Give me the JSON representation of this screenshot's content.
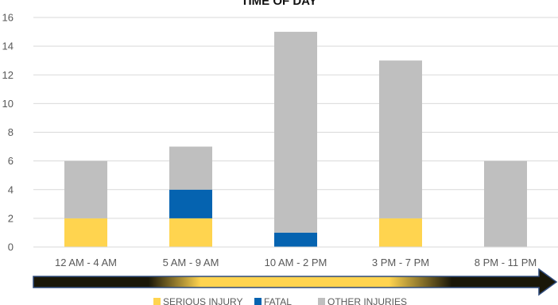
{
  "chart_data": {
    "type": "bar",
    "stacked": true,
    "title": "TIME OF DAY",
    "xlabel": "",
    "ylabel": "",
    "categories": [
      "12 AM - 4 AM",
      "5 AM - 9 AM",
      "10 AM - 2 PM",
      "3 PM - 7 PM",
      "8 PM - 11 PM"
    ],
    "series": [
      {
        "name": "SERIOUS INJURY",
        "color": "#FFD44F",
        "values": [
          2,
          2,
          0,
          2,
          0
        ]
      },
      {
        "name": "FATAL",
        "color": "#0563B0",
        "values": [
          0,
          2,
          1,
          0,
          0
        ]
      },
      {
        "name": "OTHER INJURIES",
        "color": "#BFBFBF",
        "values": [
          4,
          3,
          14,
          11,
          6
        ]
      }
    ],
    "ylim": [
      0,
      16
    ],
    "yticks": [
      0,
      2,
      4,
      6,
      8,
      10,
      12,
      14,
      16
    ],
    "grid": true,
    "legend": "bottom",
    "time_arrow": {
      "colors": {
        "dark": "#1a1708",
        "light": "#FFD44F",
        "outline": "#2F4B7C"
      }
    }
  }
}
